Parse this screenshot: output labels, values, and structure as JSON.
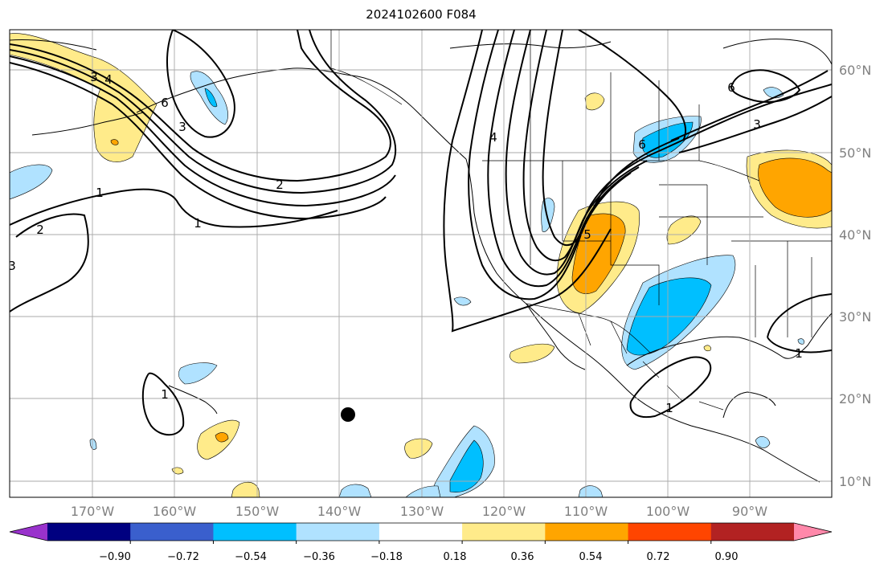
{
  "title": "2024102600 F084",
  "lat_labels": [
    "60°N",
    "50°N",
    "40°N",
    "30°N",
    "20°N",
    "10°N"
  ],
  "lon_labels": [
    "170°W",
    "160°W",
    "150°W",
    "140°W",
    "130°W",
    "120°W",
    "110°W",
    "100°W",
    "90°W"
  ],
  "colorbar": {
    "ticks": [
      "−0.90",
      "−0.72",
      "−0.54",
      "−0.36",
      "−0.18",
      "0.18",
      "0.36",
      "0.54",
      "0.72",
      "0.90"
    ],
    "colors": [
      "#9932cc",
      "#000080",
      "#3a5fcd",
      "#00bfff",
      "#b0e2ff",
      "#ffffff",
      "#ffeb8a",
      "#ffa500",
      "#ff4500",
      "#b22222",
      "#ff88aa"
    ]
  },
  "contour_labels": [
    "3",
    "4",
    "6",
    "3",
    "1",
    "2",
    "1",
    "2",
    "4",
    "5",
    "6",
    "3",
    "1",
    "1",
    "1",
    "3",
    "6"
  ]
}
